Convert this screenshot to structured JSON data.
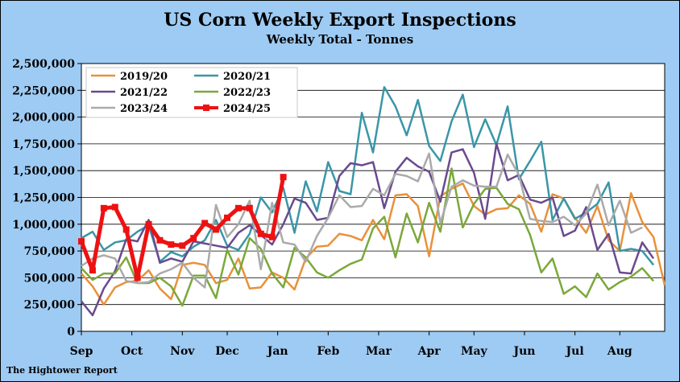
{
  "chart_data": {
    "type": "line",
    "title": "US Corn Weekly Export Inspections",
    "subtitle": "Weekly Total - Tonnes",
    "source": "The Hightower Report",
    "ylim": [
      0,
      2500000
    ],
    "yticks": [
      0,
      250000,
      500000,
      750000,
      1000000,
      1250000,
      1500000,
      1750000,
      2000000,
      2250000,
      2500000
    ],
    "ytick_labels": [
      "0",
      "250,000",
      "500,000",
      "750,000",
      "1,000,000",
      "1,250,000",
      "1,500,000",
      "1,750,000",
      "2,000,000",
      "2,250,000",
      "2,500,000"
    ],
    "xlim": [
      0,
      52
    ],
    "xticks": [
      0,
      4.5,
      9,
      13,
      17.5,
      22,
      26.5,
      31,
      35,
      39.5,
      44,
      48
    ],
    "xtick_labels": [
      "Sep",
      "Oct",
      "Nov",
      "Dec",
      "Jan",
      "Feb",
      "Mar",
      "Apr",
      "May",
      "Jun",
      "Jul",
      "Aug"
    ],
    "grid": "horizontal",
    "legend_position": "top-left",
    "series": [
      {
        "name": "2019/20",
        "color": "#e8913a",
        "width": 2.5,
        "marker": false,
        "values": [
          540000,
          420000,
          250000,
          410000,
          460000,
          470000,
          570000,
          400000,
          300000,
          620000,
          640000,
          620000,
          450000,
          480000,
          680000,
          400000,
          410000,
          550000,
          500000,
          390000,
          680000,
          790000,
          800000,
          910000,
          890000,
          850000,
          1040000,
          860000,
          1270000,
          1280000,
          1170000,
          700000,
          1260000,
          1330000,
          1380000,
          1170000,
          1090000,
          1140000,
          1150000,
          1270000,
          1190000,
          930000,
          1280000,
          1240000,
          1060000,
          920000,
          1170000,
          850000,
          750000,
          1290000,
          1020000,
          880000,
          430000
        ]
      },
      {
        "name": "2020/21",
        "color": "#3a96a8",
        "width": 2.5,
        "marker": false,
        "values": [
          870000,
          930000,
          760000,
          830000,
          850000,
          930000,
          990000,
          650000,
          740000,
          700000,
          790000,
          850000,
          1040000,
          800000,
          760000,
          910000,
          1250000,
          1110000,
          1340000,
          920000,
          1400000,
          1120000,
          1580000,
          1310000,
          1280000,
          2040000,
          1670000,
          2280000,
          2100000,
          1830000,
          2160000,
          1730000,
          1590000,
          1960000,
          2210000,
          1720000,
          1980000,
          1740000,
          2100000,
          1420000,
          1590000,
          1770000,
          1040000,
          1240000,
          1050000,
          1110000,
          1190000,
          1390000,
          750000,
          770000,
          750000,
          620000
        ]
      },
      {
        "name": "2021/22",
        "color": "#6a4a8e",
        "width": 2.5,
        "marker": false,
        "values": [
          280000,
          150000,
          400000,
          560000,
          860000,
          840000,
          1040000,
          640000,
          680000,
          650000,
          840000,
          820000,
          800000,
          780000,
          920000,
          990000,
          900000,
          810000,
          1000000,
          1240000,
          1200000,
          1040000,
          1060000,
          1450000,
          1570000,
          1550000,
          1580000,
          1150000,
          1490000,
          1620000,
          1540000,
          1490000,
          1210000,
          1670000,
          1700000,
          1480000,
          1050000,
          1750000,
          1410000,
          1460000,
          1230000,
          1200000,
          1250000,
          890000,
          940000,
          1160000,
          760000,
          910000,
          550000,
          540000,
          830000,
          680000
        ]
      },
      {
        "name": "2022/23",
        "color": "#7aa83a",
        "width": 2.5,
        "marker": false,
        "values": [
          590000,
          480000,
          540000,
          540000,
          690000,
          450000,
          450000,
          500000,
          420000,
          240000,
          520000,
          520000,
          310000,
          760000,
          530000,
          870000,
          770000,
          540000,
          410000,
          780000,
          690000,
          550000,
          500000,
          570000,
          630000,
          670000,
          960000,
          1070000,
          690000,
          1100000,
          830000,
          1200000,
          930000,
          1520000,
          970000,
          1190000,
          1330000,
          1340000,
          1190000,
          1140000,
          900000,
          550000,
          680000,
          350000,
          420000,
          320000,
          540000,
          390000,
          460000,
          510000,
          590000,
          470000
        ]
      },
      {
        "name": "2023/24",
        "color": "#aaaaaa",
        "width": 2.5,
        "marker": false,
        "values": [
          610000,
          680000,
          710000,
          680000,
          470000,
          450000,
          460000,
          540000,
          580000,
          640000,
          500000,
          410000,
          1180000,
          880000,
          1000000,
          1220000,
          580000,
          1200000,
          830000,
          810000,
          650000,
          890000,
          1060000,
          1270000,
          1160000,
          1170000,
          1330000,
          1270000,
          1470000,
          1450000,
          1400000,
          1660000,
          1010000,
          1350000,
          1410000,
          1360000,
          1350000,
          1350000,
          1650000,
          1460000,
          1050000,
          1030000,
          1020000,
          1070000,
          990000,
          1100000,
          1370000,
          990000,
          1220000,
          920000,
          970000
        ]
      },
      {
        "name": "2024/25",
        "color": "#ee1111",
        "width": 5,
        "marker": true,
        "values": [
          840000,
          570000,
          1150000,
          1160000,
          950000,
          500000,
          1000000,
          850000,
          810000,
          800000,
          870000,
          1010000,
          950000,
          1060000,
          1150000,
          1150000,
          910000,
          880000,
          1440000
        ]
      }
    ]
  }
}
